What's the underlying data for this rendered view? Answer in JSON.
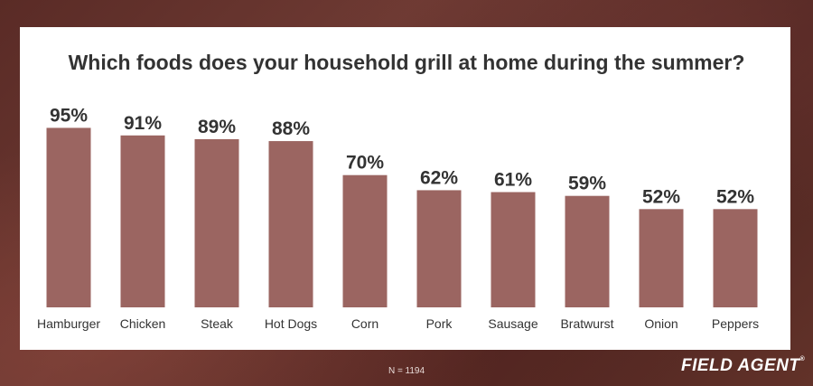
{
  "chart_data": {
    "type": "bar",
    "title": "Which foods does your household grill at home during the summer?",
    "categories": [
      "Hamburger",
      "Chicken",
      "Steak",
      "Hot Dogs",
      "Corn",
      "Pork",
      "Sausage",
      "Bratwurst",
      "Onion",
      "Peppers"
    ],
    "values": [
      95,
      91,
      89,
      88,
      70,
      62,
      61,
      59,
      52,
      52
    ],
    "value_labels": [
      "95%",
      "91%",
      "89%",
      "88%",
      "70%",
      "62%",
      "61%",
      "59%",
      "52%",
      "52%"
    ],
    "unit": "%",
    "ylim": [
      0,
      100
    ],
    "grid": false,
    "bar_color": "#9b6561"
  },
  "footnote": "N = 1194",
  "brand": "FIELD AGENT",
  "brand_mark": "®",
  "colors": {
    "background": "#5a2b26",
    "card": "#ffffff",
    "title_text": "#333333",
    "bar": "#9b6561"
  }
}
